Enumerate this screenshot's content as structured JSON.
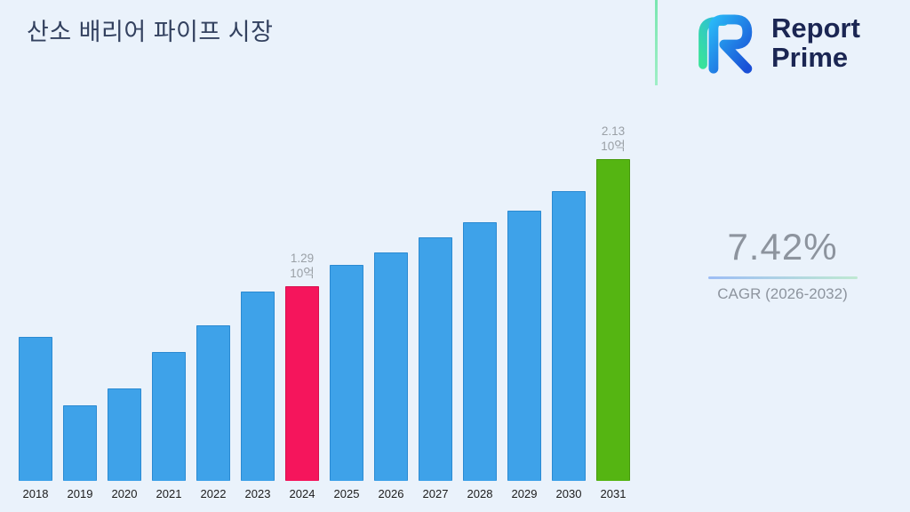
{
  "title": "산소 배리어 파이프 시장",
  "logo": {
    "line1": "Report",
    "line2": "Prime"
  },
  "stats": {
    "value": "7.42%",
    "label": "CAGR (2026-2032)"
  },
  "chart_data": {
    "type": "bar",
    "title": "산소 배리어 파이프 시장",
    "xlabel": "",
    "ylabel": "",
    "unit_label": "10억",
    "ylim": [
      0,
      2.4
    ],
    "grid": false,
    "legend": "none",
    "categories": [
      "2018",
      "2019",
      "2020",
      "2021",
      "2022",
      "2023",
      "2024",
      "2025",
      "2026",
      "2027",
      "2028",
      "2029",
      "2030",
      "2031"
    ],
    "values": [
      0.95,
      0.5,
      0.61,
      0.85,
      1.03,
      1.25,
      1.29,
      1.43,
      1.51,
      1.61,
      1.71,
      1.79,
      1.92,
      2.13
    ],
    "bars": [
      {
        "year": "2018",
        "value": 0.95,
        "color": "blue"
      },
      {
        "year": "2019",
        "value": 0.5,
        "color": "blue"
      },
      {
        "year": "2020",
        "value": 0.61,
        "color": "blue"
      },
      {
        "year": "2021",
        "value": 0.85,
        "color": "blue"
      },
      {
        "year": "2022",
        "value": 1.03,
        "color": "blue"
      },
      {
        "year": "2023",
        "value": 1.25,
        "color": "blue"
      },
      {
        "year": "2024",
        "value": 1.29,
        "color": "pink",
        "label": "1.29"
      },
      {
        "year": "2025",
        "value": 1.43,
        "color": "blue"
      },
      {
        "year": "2026",
        "value": 1.51,
        "color": "blue"
      },
      {
        "year": "2027",
        "value": 1.61,
        "color": "blue"
      },
      {
        "year": "2028",
        "value": 1.71,
        "color": "blue"
      },
      {
        "year": "2029",
        "value": 1.79,
        "color": "blue"
      },
      {
        "year": "2030",
        "value": 1.92,
        "color": "blue"
      },
      {
        "year": "2031",
        "value": 2.13,
        "color": "green",
        "label": "2.13"
      }
    ],
    "annotations": [
      {
        "year": "2024",
        "value_label": "1.29",
        "unit": "10억"
      },
      {
        "year": "2031",
        "value_label": "2.13",
        "unit": "10억"
      }
    ],
    "colors": {
      "blue": "#3ea2e9",
      "pink": "#f5155c",
      "green": "#55b512"
    },
    "border_colors": {
      "blue": "#2b8ad2",
      "pink": "#d60f4e",
      "green": "#469a0d"
    },
    "background": "#eaf2fb",
    "divider_color": "#79e6b0"
  }
}
